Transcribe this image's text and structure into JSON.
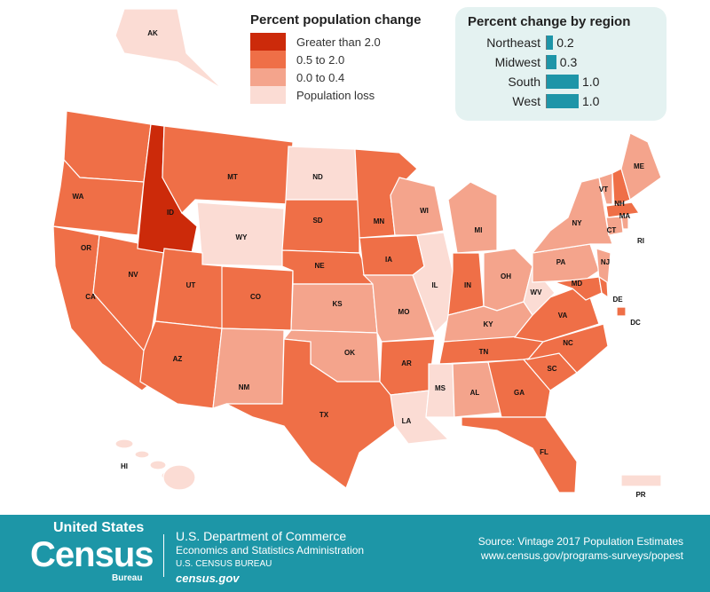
{
  "colors": {
    "gt2": "#cc2a0a",
    "mid": "#ef6f47",
    "low": "#f4a48c",
    "loss": "#fbdcd4",
    "accent": "#1d96a7"
  },
  "legend": {
    "title": "Percent population change",
    "items": [
      {
        "key": "gt2",
        "label": "Greater than 2.0"
      },
      {
        "key": "mid",
        "label": "0.5 to 2.0"
      },
      {
        "key": "low",
        "label": "0.0 to 0.4"
      },
      {
        "key": "loss",
        "label": "Population loss"
      }
    ]
  },
  "regions": {
    "title": "Percent change by region",
    "items": [
      {
        "name": "Northeast",
        "value": 0.2,
        "label": "0.2"
      },
      {
        "name": "Midwest",
        "value": 0.3,
        "label": "0.3"
      },
      {
        "name": "South",
        "value": 1.0,
        "label": "1.0"
      },
      {
        "name": "West",
        "value": 1.0,
        "label": "1.0"
      }
    ]
  },
  "states": {
    "WA": "mid",
    "OR": "mid",
    "CA": "mid",
    "NV": "mid",
    "ID": "gt2",
    "MT": "mid",
    "WY": "loss",
    "UT": "mid",
    "AZ": "mid",
    "CO": "mid",
    "NM": "low",
    "ND": "loss",
    "SD": "mid",
    "NE": "mid",
    "KS": "low",
    "OK": "low",
    "TX": "mid",
    "MN": "mid",
    "IA": "mid",
    "MO": "low",
    "AR": "mid",
    "LA": "loss",
    "WI": "low",
    "IL": "loss",
    "MI": "low",
    "IN": "mid",
    "OH": "low",
    "KY": "low",
    "TN": "mid",
    "MS": "loss",
    "AL": "low",
    "GA": "mid",
    "FL": "mid",
    "SC": "mid",
    "NC": "mid",
    "VA": "mid",
    "WV": "loss",
    "PA": "low",
    "NY": "low",
    "VT": "low",
    "NH": "mid",
    "ME": "low",
    "MA": "mid",
    "CT": "low",
    "RI": "low",
    "NJ": "low",
    "MD": "mid",
    "DE": "mid",
    "DC": "mid",
    "AK": "loss",
    "HI": "loss",
    "PR": "loss"
  },
  "footer": {
    "logo_top": "United States",
    "logo_main": "Census",
    "logo_sub": "Bureau",
    "dept": "U.S. Department of Commerce",
    "admin": "Economics and Statistics Administration",
    "bureau": "U.S. CENSUS BUREAU",
    "site": "census.gov",
    "source": "Source: Vintage 2017 Population Estimates",
    "url": "www.census.gov/programs-surveys/popest"
  }
}
